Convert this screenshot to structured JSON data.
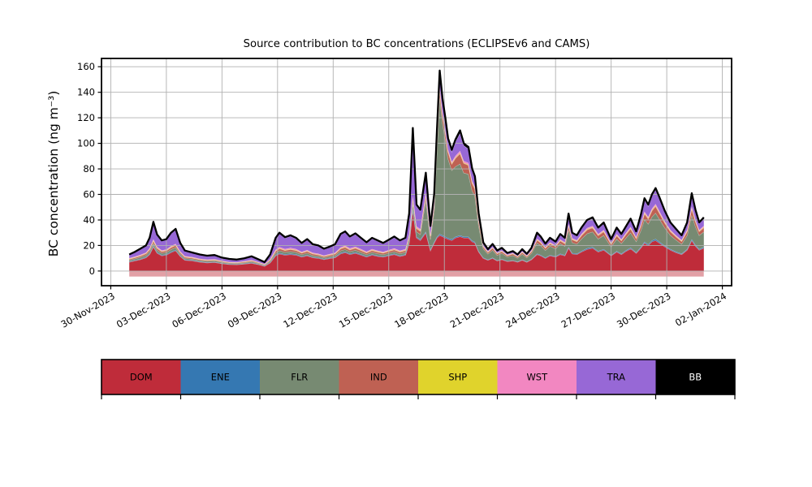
{
  "figure": {
    "title": "Source contribution to BC concentrations (ECLIPSEv6 and CAMS)",
    "ylabel": "BC concentration (ng m⁻³)"
  },
  "legend": {
    "entries": [
      {
        "label": "DOM",
        "color": "#bf2c3a",
        "text_color": "#000000"
      },
      {
        "label": "ENE",
        "color": "#3578b2",
        "text_color": "#000000"
      },
      {
        "label": "FLR",
        "color": "#778a72",
        "text_color": "#000000"
      },
      {
        "label": "IND",
        "color": "#bf6153",
        "text_color": "#000000"
      },
      {
        "label": "SHP",
        "color": "#e0d32c",
        "text_color": "#000000"
      },
      {
        "label": "WST",
        "color": "#f287c1",
        "text_color": "#000000"
      },
      {
        "label": "TRA",
        "color": "#9768d6",
        "text_color": "#000000"
      },
      {
        "label": "BB",
        "color": "#000000",
        "text_color": "#ffffff"
      }
    ]
  },
  "chart_data": {
    "type": "area",
    "stacked": true,
    "title": "Source contribution to BC concentrations (ECLIPSEv6 and CAMS)",
    "xlabel": "",
    "ylabel": "BC concentration (ng m⁻³)",
    "grid": true,
    "x_unit": "days since 30-Nov-2023 (hourly series approximated)",
    "xlim": [
      -0.5,
      33.5
    ],
    "ylim": [
      -11.5,
      166.5
    ],
    "x_ticks": [
      0,
      3,
      6,
      9,
      12,
      15,
      18,
      21,
      24,
      27,
      30,
      33
    ],
    "x_tick_labels": [
      "30-Nov-2023",
      "03-Dec-2023",
      "06-Dec-2023",
      "09-Dec-2023",
      "12-Dec-2023",
      "15-Dec-2023",
      "18-Dec-2023",
      "21-Dec-2023",
      "24-Dec-2023",
      "27-Dec-2023",
      "30-Dec-2023",
      "02-Jan-2024"
    ],
    "y_ticks": [
      0,
      20,
      40,
      60,
      80,
      100,
      120,
      140,
      160
    ],
    "outline_color": "#000000",
    "grid_color": "#b0b0b0",
    "understrip": {
      "color": "#e2a0a6",
      "from": 0,
      "to": -4.3
    },
    "series": [
      {
        "name": "DOM",
        "color": "#bf2c3a"
      },
      {
        "name": "ENE",
        "color": "#3578b2"
      },
      {
        "name": "FLR",
        "color": "#778a72"
      },
      {
        "name": "IND",
        "color": "#bf6153"
      },
      {
        "name": "SHP",
        "color": "#e0d32c"
      },
      {
        "name": "WST",
        "color": "#f287c1"
      },
      {
        "name": "TRA",
        "color": "#9768d6"
      },
      {
        "name": "BB",
        "color": "#000000"
      }
    ],
    "columns": [
      "x",
      "DOM",
      "ENE",
      "FLR",
      "IND",
      "SHP",
      "WST",
      "TRA",
      "BB"
    ],
    "points": [
      [
        1.0,
        7,
        0.5,
        1,
        0.8,
        0.3,
        0.5,
        2.5,
        0.4
      ],
      [
        1.3,
        8,
        0.5,
        1.1,
        0.9,
        0.3,
        0.5,
        3.3,
        0.4
      ],
      [
        1.6,
        9,
        0.5,
        1.3,
        1,
        0.3,
        0.6,
        4.4,
        0.4
      ],
      [
        1.9,
        10.5,
        0.6,
        1.4,
        1.1,
        0.3,
        0.6,
        5,
        0.5
      ],
      [
        2.1,
        13,
        0.7,
        1.7,
        1.4,
        0.4,
        0.8,
        7.5,
        0.6
      ],
      [
        2.3,
        19,
        0.8,
        2.1,
        1.8,
        0.4,
        0.9,
        12.8,
        0.7
      ],
      [
        2.5,
        14,
        0.7,
        1.6,
        1.5,
        0.4,
        0.8,
        9,
        0.6
      ],
      [
        2.75,
        12,
        0.6,
        1.4,
        1.2,
        0.3,
        0.7,
        7.3,
        0.5
      ],
      [
        3.0,
        12.5,
        0.6,
        1.5,
        1.3,
        0.3,
        0.7,
        7.6,
        0.5
      ],
      [
        3.25,
        14.5,
        0.7,
        1.7,
        1.5,
        0.4,
        0.8,
        9.8,
        0.6
      ],
      [
        3.5,
        16,
        0.7,
        1.8,
        1.6,
        0.4,
        0.8,
        11.1,
        0.6
      ],
      [
        3.75,
        11.5,
        0.6,
        1.3,
        1.1,
        0.3,
        0.6,
        6.1,
        0.5
      ],
      [
        4.0,
        8.5,
        0.5,
        1,
        0.9,
        0.3,
        0.5,
        3.9,
        0.4
      ],
      [
        4.4,
        8,
        0.5,
        0.9,
        0.8,
        0.3,
        0.5,
        3.1,
        0.4
      ],
      [
        4.8,
        7,
        0.4,
        0.9,
        0.7,
        0.3,
        0.4,
        2.9,
        0.4
      ],
      [
        5.2,
        6.5,
        0.4,
        0.8,
        0.7,
        0.2,
        0.4,
        2.6,
        0.4
      ],
      [
        5.6,
        6.8,
        0.4,
        0.8,
        0.7,
        0.2,
        0.4,
        2.8,
        0.4
      ],
      [
        6.0,
        5.8,
        0.4,
        0.7,
        0.6,
        0.2,
        0.4,
        2,
        0.4
      ],
      [
        6.4,
        5.2,
        0.3,
        0.6,
        0.5,
        0.2,
        0.3,
        2,
        0.4
      ],
      [
        6.8,
        5,
        0.3,
        0.6,
        0.5,
        0.2,
        0.3,
        1.7,
        0.4
      ],
      [
        7.2,
        5.5,
        0.3,
        0.7,
        0.6,
        0.2,
        0.4,
        1.9,
        0.4
      ],
      [
        7.6,
        6.2,
        0.4,
        0.8,
        0.7,
        0.2,
        0.4,
        2.4,
        0.4
      ],
      [
        8.0,
        5,
        0.3,
        0.6,
        0.5,
        0.2,
        0.3,
        1.7,
        0.4
      ],
      [
        8.3,
        3.8,
        0.3,
        0.5,
        0.4,
        0.2,
        0.3,
        1.2,
        0.3
      ],
      [
        8.6,
        6.5,
        0.4,
        0.9,
        0.8,
        0.3,
        0.5,
        3.2,
        0.4
      ],
      [
        8.9,
        12,
        0.6,
        1.6,
        1.4,
        0.4,
        0.8,
        8.6,
        0.6
      ],
      [
        9.1,
        13.5,
        0.7,
        1.8,
        1.6,
        0.4,
        0.9,
        10.5,
        0.6
      ],
      [
        9.4,
        12.5,
        0.6,
        1.6,
        1.4,
        0.4,
        0.8,
        8.6,
        0.6
      ],
      [
        9.7,
        13,
        0.7,
        1.7,
        1.5,
        0.4,
        0.8,
        9.3,
        0.6
      ],
      [
        10.0,
        12.5,
        0.6,
        1.6,
        1.4,
        0.4,
        0.8,
        8.1,
        0.6
      ],
      [
        10.3,
        11,
        0.6,
        1.3,
        1.2,
        0.3,
        0.7,
        6.4,
        0.5
      ],
      [
        10.6,
        12,
        0.6,
        1.5,
        1.3,
        0.4,
        0.7,
        7.9,
        0.6
      ],
      [
        10.9,
        10.5,
        0.5,
        1.3,
        1.1,
        0.3,
        0.6,
        6.2,
        0.5
      ],
      [
        11.2,
        10,
        0.5,
        1.2,
        1,
        0.3,
        0.6,
        5.9,
        0.5
      ],
      [
        11.5,
        9,
        0.5,
        1,
        0.9,
        0.3,
        0.5,
        4.8,
        0.5
      ],
      [
        11.8,
        9.8,
        0.5,
        1.1,
        1,
        0.3,
        0.6,
        5.2,
        0.5
      ],
      [
        12.1,
        10.5,
        0.5,
        1.3,
        1.1,
        0.3,
        0.6,
        6.2,
        0.5
      ],
      [
        12.4,
        13.5,
        0.7,
        1.7,
        1.5,
        0.4,
        0.8,
        9.8,
        0.6
      ],
      [
        12.65,
        14.5,
        0.7,
        1.8,
        1.6,
        0.4,
        0.9,
        10.5,
        0.6
      ],
      [
        12.9,
        13,
        0.6,
        1.6,
        1.4,
        0.4,
        0.8,
        8.6,
        0.6
      ],
      [
        13.2,
        14,
        0.7,
        1.7,
        1.5,
        0.4,
        0.8,
        9.8,
        0.6
      ],
      [
        13.5,
        12.5,
        0.6,
        1.6,
        1.4,
        0.4,
        0.8,
        8.1,
        0.6
      ],
      [
        13.8,
        11,
        0.6,
        1.4,
        1.2,
        0.3,
        0.7,
        6.8,
        0.5
      ],
      [
        14.1,
        12.5,
        0.6,
        1.6,
        1.4,
        0.4,
        0.8,
        8.1,
        0.6
      ],
      [
        14.4,
        11.5,
        0.6,
        1.5,
        1.3,
        0.4,
        0.7,
        7.4,
        0.6
      ],
      [
        14.7,
        11,
        0.6,
        1.3,
        1.2,
        0.3,
        0.7,
        6.4,
        0.5
      ],
      [
        15.0,
        12,
        0.6,
        1.5,
        1.3,
        0.4,
        0.7,
        7.4,
        0.6
      ],
      [
        15.3,
        13,
        0.6,
        1.6,
        1.4,
        0.4,
        0.8,
        8.6,
        0.6
      ],
      [
        15.6,
        11.5,
        0.6,
        1.5,
        1.3,
        0.4,
        0.7,
        7.4,
        0.6
      ],
      [
        15.9,
        12.5,
        0.6,
        1.6,
        1.4,
        0.4,
        0.8,
        8.1,
        0.6
      ],
      [
        16.1,
        22,
        0.8,
        2.5,
        2,
        0.5,
        1,
        15.5,
        0.7
      ],
      [
        16.3,
        48,
        1,
        5,
        3,
        0.5,
        1.5,
        51,
        2
      ],
      [
        16.5,
        26,
        0.8,
        4,
        2.5,
        0.5,
        1.2,
        16,
        1
      ],
      [
        16.7,
        24,
        0.8,
        4,
        2.5,
        0.5,
        1.1,
        14.3,
        0.8
      ],
      [
        17.0,
        30,
        0.9,
        25,
        4,
        0.5,
        1.3,
        14,
        1.3
      ],
      [
        17.25,
        16,
        0.7,
        8,
        2.5,
        0.4,
        0.9,
        6,
        0.8
      ],
      [
        17.45,
        22,
        0.8,
        25,
        4,
        0.5,
        1,
        6,
        0.9
      ],
      [
        17.6,
        26,
        0.9,
        68,
        5,
        0.5,
        1.2,
        7,
        1.6
      ],
      [
        17.75,
        28,
        1,
        107,
        6,
        0.6,
        1.5,
        10.5,
        2.4
      ],
      [
        17.9,
        27,
        1,
        88,
        6,
        0.5,
        1.4,
        9.3,
        1.8
      ],
      [
        18.05,
        26,
        0.9,
        76,
        6,
        0.5,
        1.3,
        8,
        1.6
      ],
      [
        18.2,
        25,
        0.9,
        62,
        5.5,
        0.5,
        1.2,
        7.5,
        1.4
      ],
      [
        18.4,
        24,
        0.9,
        54,
        5,
        0.5,
        1.2,
        8,
        1.4
      ],
      [
        18.6,
        26,
        0.9,
        55,
        6.5,
        0.5,
        1.3,
        11,
        1.8
      ],
      [
        18.85,
        27,
        1,
        56,
        8,
        0.6,
        1.5,
        14,
        2
      ],
      [
        19.05,
        26,
        0.9,
        50,
        7.5,
        0.5,
        1.4,
        12,
        1.7
      ],
      [
        19.3,
        26,
        0.9,
        49,
        7,
        0.5,
        1.3,
        11,
        1.5
      ],
      [
        19.5,
        23,
        0.8,
        39,
        6,
        0.5,
        1.2,
        8.5,
        1.2
      ],
      [
        19.65,
        22,
        0.8,
        36,
        5.5,
        0.5,
        1.1,
        7.2,
        1
      ],
      [
        19.85,
        15,
        0.6,
        20,
        3.5,
        0.4,
        0.8,
        4.2,
        0.7
      ],
      [
        20.1,
        10,
        0.5,
        7,
        1.5,
        0.3,
        0.5,
        2,
        0.5
      ],
      [
        20.35,
        8.5,
        0.4,
        4.5,
        1.2,
        0.3,
        0.4,
        1.4,
        0.4
      ],
      [
        20.6,
        10,
        0.5,
        6,
        1.5,
        0.3,
        0.5,
        1.9,
        0.5
      ],
      [
        20.85,
        8,
        0.4,
        4,
        1.2,
        0.3,
        0.4,
        1.4,
        0.4
      ],
      [
        21.1,
        9,
        0.4,
        4.5,
        1.4,
        0.3,
        0.5,
        1.6,
        0.4
      ],
      [
        21.4,
        7.5,
        0.4,
        3.2,
        1,
        0.2,
        0.4,
        1,
        0.4
      ],
      [
        21.7,
        8,
        0.4,
        3.8,
        1.2,
        0.3,
        0.4,
        1.1,
        0.4
      ],
      [
        21.95,
        7,
        0.4,
        2.8,
        1,
        0.2,
        0.3,
        1,
        0.3
      ],
      [
        22.2,
        8.5,
        0.4,
        4.4,
        1.3,
        0.3,
        0.4,
        1.4,
        0.4
      ],
      [
        22.45,
        7,
        0.4,
        3.1,
        1,
        0.2,
        0.4,
        1.1,
        0.3
      ],
      [
        22.7,
        9,
        0.4,
        4.5,
        1.4,
        0.3,
        0.5,
        1.6,
        0.4
      ],
      [
        23.0,
        13,
        0.6,
        8.5,
        2.2,
        0.4,
        0.7,
        4,
        0.6
      ],
      [
        23.2,
        12,
        0.6,
        7.5,
        2,
        0.4,
        0.6,
        3.4,
        0.5
      ],
      [
        23.45,
        10,
        0.5,
        5.8,
        1.6,
        0.3,
        0.5,
        2.4,
        0.4
      ],
      [
        23.7,
        12,
        0.5,
        7,
        2,
        0.4,
        0.6,
        3,
        0.5
      ],
      [
        24.0,
        11,
        0.5,
        6,
        1.7,
        0.3,
        0.5,
        2.6,
        0.4
      ],
      [
        24.25,
        13,
        0.6,
        8,
        2.1,
        0.4,
        0.7,
        3.6,
        0.6
      ],
      [
        24.5,
        12,
        0.5,
        7,
        2,
        0.4,
        0.6,
        3,
        0.5
      ],
      [
        24.7,
        18,
        0.8,
        13.5,
        3.2,
        0.5,
        0.9,
        7.2,
        0.9
      ],
      [
        24.9,
        13.5,
        0.6,
        8.3,
        2.2,
        0.4,
        0.7,
        3.7,
        0.6
      ],
      [
        25.15,
        13,
        0.6,
        7.5,
        2,
        0.4,
        0.6,
        3.4,
        0.5
      ],
      [
        25.4,
        15,
        0.7,
        9.5,
        2.6,
        0.4,
        0.8,
        4.4,
        0.6
      ],
      [
        25.7,
        17,
        0.8,
        11.5,
        3,
        0.5,
        0.9,
        5.5,
        0.8
      ],
      [
        26.0,
        18,
        0.8,
        12,
        3.2,
        0.5,
        0.9,
        5.8,
        0.8
      ],
      [
        26.3,
        15,
        0.7,
        9.5,
        2.6,
        0.4,
        0.8,
        4.4,
        0.6
      ],
      [
        26.6,
        16.5,
        0.7,
        10.8,
        2.9,
        0.5,
        0.8,
        5,
        0.8
      ],
      [
        27.0,
        12,
        0.5,
        6.5,
        1.9,
        0.4,
        0.6,
        2.7,
        0.4
      ],
      [
        27.3,
        15,
        0.7,
        9.5,
        2.6,
        0.4,
        0.8,
        4.4,
        0.6
      ],
      [
        27.55,
        13,
        0.6,
        8,
        2.1,
        0.4,
        0.7,
        3.6,
        0.6
      ],
      [
        27.8,
        15.5,
        0.7,
        9.8,
        2.7,
        0.4,
        0.8,
        4.5,
        0.6
      ],
      [
        28.05,
        17.5,
        0.8,
        11.8,
        3.1,
        0.5,
        0.9,
        5.6,
        0.8
      ],
      [
        28.35,
        14,
        0.6,
        8.6,
        2.3,
        0.4,
        0.7,
        3.8,
        0.6
      ],
      [
        28.6,
        18,
        0.8,
        13,
        3.3,
        0.5,
        0.9,
        6.6,
        0.9
      ],
      [
        28.8,
        22,
        1,
        17.5,
        4.5,
        0.5,
        1.1,
        9.2,
        1.2
      ],
      [
        29.0,
        20,
        0.9,
        16,
        4,
        0.5,
        1,
        8.5,
        1.1
      ],
      [
        29.2,
        23,
        1,
        18.5,
        4.8,
        0.5,
        1.1,
        10,
        1.1
      ],
      [
        29.4,
        24,
        1.1,
        20.5,
        5.2,
        0.6,
        1.2,
        11.2,
        1.2
      ],
      [
        29.6,
        22,
        1,
        17.8,
        4.6,
        0.5,
        1.1,
        9.8,
        1.2
      ],
      [
        29.9,
        19,
        0.8,
        14,
        3.7,
        0.5,
        0.9,
        7.2,
        0.9
      ],
      [
        30.2,
        16.5,
        0.7,
        10.8,
        2.9,
        0.5,
        0.8,
        5,
        0.8
      ],
      [
        30.5,
        14.5,
        0.7,
        9.2,
        2.5,
        0.4,
        0.7,
        4.4,
        0.6
      ],
      [
        30.8,
        13,
        0.6,
        7.6,
        2,
        0.4,
        0.6,
        3.3,
        0.5
      ],
      [
        31.1,
        16.5,
        0.7,
        10.8,
        2.9,
        0.5,
        0.8,
        5,
        0.8
      ],
      [
        31.35,
        24,
        1,
        19,
        5,
        0.5,
        1.1,
        9.2,
        1.2
      ],
      [
        31.55,
        19.5,
        0.9,
        14.5,
        3.8,
        0.5,
        0.9,
        7,
        0.9
      ],
      [
        31.75,
        16.5,
        0.7,
        10.8,
        2.9,
        0.5,
        0.8,
        5,
        0.8
      ],
      [
        32.0,
        18,
        0.8,
        12,
        3.2,
        0.5,
        0.9,
        5.8,
        0.8
      ]
    ]
  }
}
